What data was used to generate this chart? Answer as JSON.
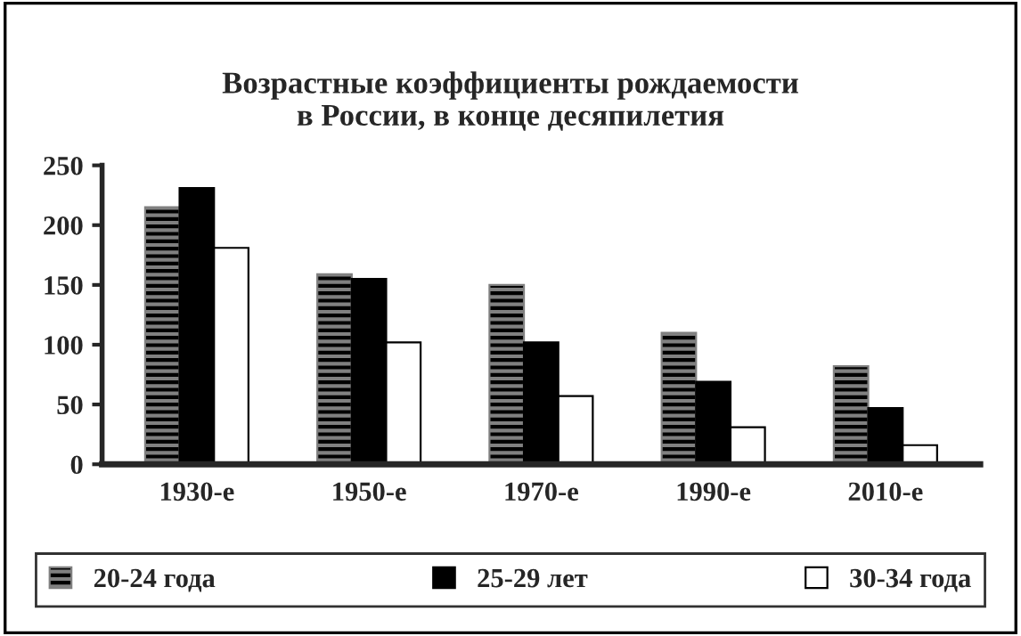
{
  "chart_data": {
    "type": "bar",
    "title": "Возрастные коэффициенты рождаемости\nв России, в конце десяпилетия",
    "categories": [
      "1930-е",
      "1950-е",
      "1970-е",
      "1990-е",
      "2010-е"
    ],
    "series": [
      {
        "name": "20-24 года",
        "color": "#808080",
        "values": [
          215,
          159,
          150,
          110,
          82
        ]
      },
      {
        "name": "25-29 лет",
        "color": "#000000",
        "values": [
          231,
          155,
          102,
          69,
          47
        ]
      },
      {
        "name": "30-34 года",
        "color": "#ffffff",
        "values": [
          181,
          102,
          57,
          31,
          16
        ]
      }
    ],
    "ylim": [
      0,
      250
    ],
    "yticks": [
      0,
      50,
      100,
      150,
      200,
      250
    ],
    "grid": false,
    "legend": "bottom"
  }
}
